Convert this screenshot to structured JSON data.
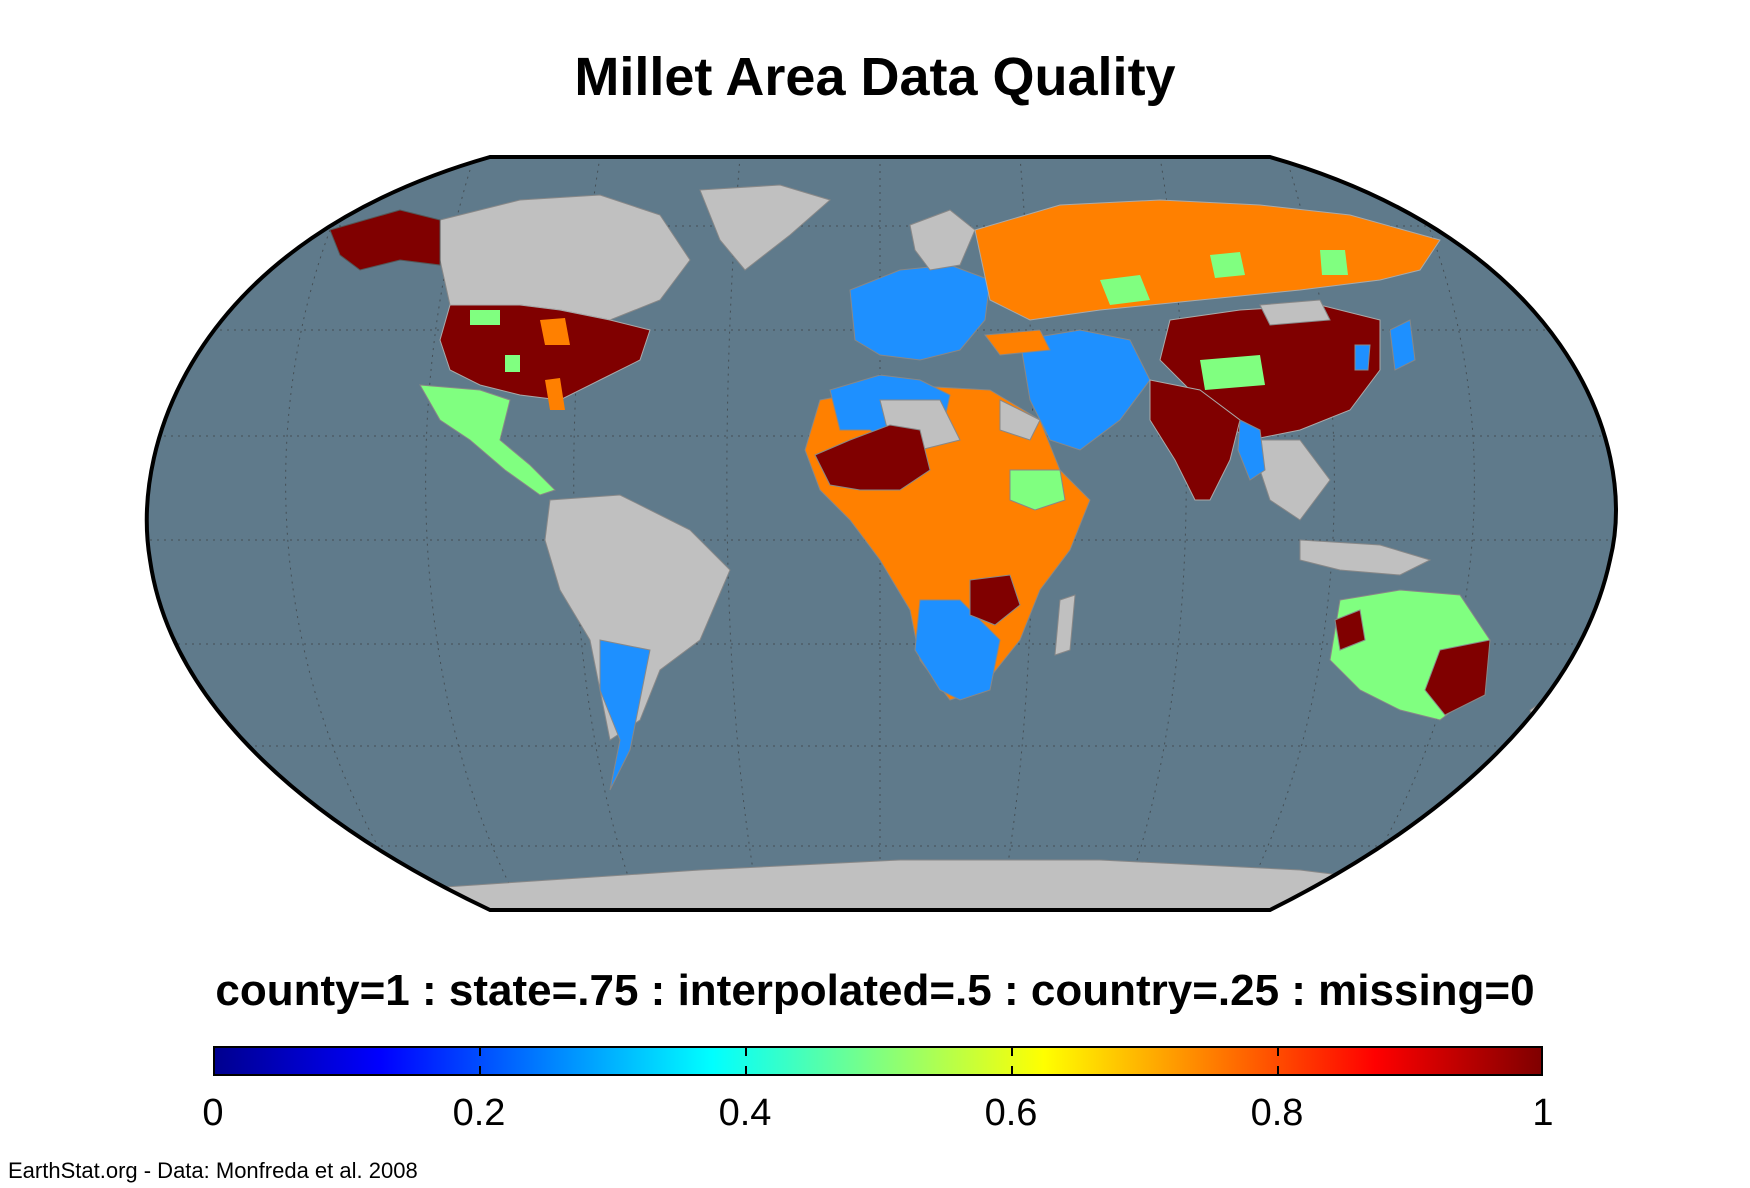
{
  "title": "Millet Area Data Quality",
  "caption": "county=1 : state=.75 : interpolated=.5 : country=.25 : missing=0",
  "footer": "EarthStat.org - Data: Monfreda et al. 2008",
  "colorbar": {
    "min": 0,
    "max": 1,
    "ticks": [
      {
        "value": 0,
        "label": "0"
      },
      {
        "value": 0.2,
        "label": "0.2"
      },
      {
        "value": 0.4,
        "label": "0.4"
      },
      {
        "value": 0.6,
        "label": "0.6"
      },
      {
        "value": 0.8,
        "label": "0.8"
      },
      {
        "value": 1,
        "label": "1"
      }
    ],
    "colormap": "jet",
    "colors": [
      "#00008f",
      "#0000ff",
      "#0080ff",
      "#00ffff",
      "#80ff80",
      "#ffff00",
      "#ff8000",
      "#ff0000",
      "#800000"
    ]
  },
  "map": {
    "projection": "Robinson",
    "ocean_color": "#5f7a8b",
    "no_data_land_color": "#c0c0c0",
    "category_colors": {
      "county": "#800000",
      "state": "#ff8000",
      "interpolated": "#80ff80",
      "country": "#1e90ff",
      "missing": "#c0c0c0"
    }
  }
}
